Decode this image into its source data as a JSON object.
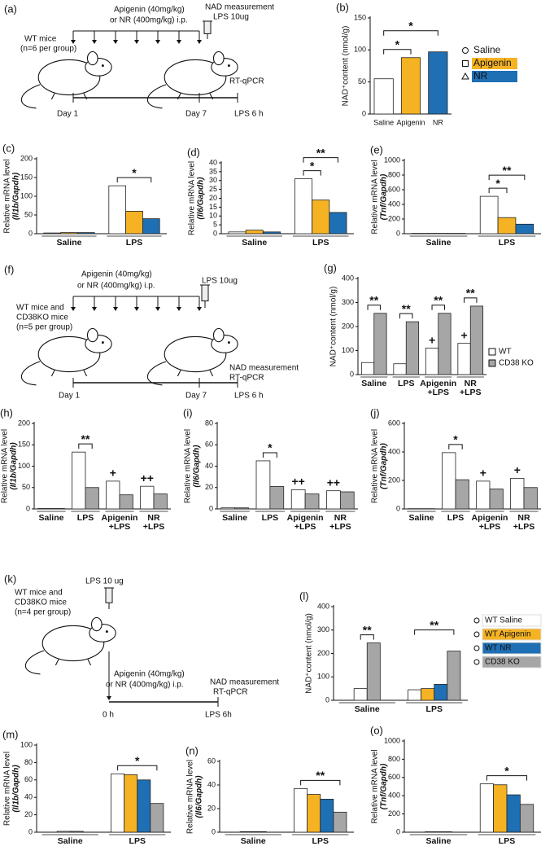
{
  "schematics": [
    {
      "panel": "(a)",
      "texts": [
        "Apigenin (40mg/kg)",
        "or NR (400mg/kg) i.p.",
        "NAD measurement",
        "LPS 10ug",
        "WT mice",
        "(n=6 per group)",
        "RT-qPCR",
        "Day 1",
        "Day 7",
        "LPS 6 h"
      ]
    },
    {
      "panel": "(f)",
      "texts": [
        "Apigenin (40mg/kg)",
        "or NR (400mg/kg) i.p.",
        "LPS 10ug",
        "WT mice and",
        "CD38KO mice",
        "(n=5 per group)",
        "NAD measurement",
        "RT-qPCR",
        "Day 1",
        "Day 7",
        "LPS 6 h"
      ]
    },
    {
      "panel": "(k)",
      "texts": [
        "WT mice and",
        "CD38KO mice",
        "(n=4 per group)",
        "LPS 10 ug",
        "Apigenin (40mg/kg)",
        "or NR (400mg/kg) i.p.",
        "NAD measurement",
        "RT-qPCR",
        "0 h",
        "LPS 6h"
      ]
    }
  ],
  "chart_data": [
    {
      "type": "bar",
      "panel": "(b)",
      "ylabel": "NAD⁺content (nmol/g)",
      "categories": [
        "Saline",
        "Apigenin",
        "NR"
      ],
      "values": [
        55,
        88,
        97
      ],
      "colors": [
        "#ffffff",
        "#f5b324",
        "#1f6fb4"
      ],
      "legend": [
        "Saline",
        "Apigenin",
        "NR"
      ],
      "ylim": [
        0,
        150
      ],
      "yticks": [
        0,
        50,
        100,
        150
      ],
      "annotations": [
        "*",
        "*"
      ]
    },
    {
      "type": "bar",
      "panel": "(c)",
      "ylabel": "Relative mRNA level",
      "ylabel2": "(Il1b/Gapdh)",
      "categories": [
        "Saline",
        "LPS"
      ],
      "series": [
        {
          "color": "#ffffff",
          "values": [
            2,
            128
          ]
        },
        {
          "color": "#f5b324",
          "values": [
            3,
            60
          ]
        },
        {
          "color": "#1f6fb4",
          "values": [
            3,
            40
          ]
        }
      ],
      "ylim": [
        0,
        200
      ],
      "yticks": [
        0,
        50,
        100,
        150,
        200
      ],
      "annotations": [
        "*"
      ]
    },
    {
      "type": "bar",
      "panel": "(d)",
      "ylabel": "Relative mRNA level",
      "ylabel2": "(Il6/Gapdh)",
      "categories": [
        "Saline",
        "LPS"
      ],
      "series": [
        {
          "color": "#ffffff",
          "values": [
            1,
            31
          ]
        },
        {
          "color": "#f5b324",
          "values": [
            2,
            19
          ]
        },
        {
          "color": "#1f6fb4",
          "values": [
            1,
            12
          ]
        }
      ],
      "ylim": [
        0,
        40
      ],
      "yticks": [
        0,
        5,
        10,
        15,
        20,
        25,
        30,
        35,
        40
      ],
      "annotations": [
        "*",
        "**"
      ]
    },
    {
      "type": "bar",
      "panel": "(e)",
      "ylabel": "Relative mRNA level",
      "ylabel2": "(Tnf/Gapdh)",
      "categories": [
        "Saline",
        "LPS"
      ],
      "series": [
        {
          "color": "#ffffff",
          "values": [
            5,
            510
          ]
        },
        {
          "color": "#f5b324",
          "values": [
            5,
            220
          ]
        },
        {
          "color": "#1f6fb4",
          "values": [
            5,
            130
          ]
        }
      ],
      "ylim": [
        0,
        1000
      ],
      "yticks": [
        0,
        200,
        400,
        600,
        800,
        1000
      ],
      "annotations": [
        "*",
        "**"
      ]
    },
    {
      "type": "bar",
      "panel": "(g)",
      "ylabel": "NAD⁺content (nmol/g)",
      "categories": [
        "Saline",
        "LPS",
        "Apigenin\n+LPS",
        "NR\n+LPS"
      ],
      "series": [
        {
          "name": "WT",
          "color": "#ffffff",
          "values": [
            50,
            45,
            110,
            130
          ]
        },
        {
          "name": "CD38 KO",
          "color": "#a6a6a6",
          "values": [
            255,
            220,
            255,
            285
          ]
        }
      ],
      "ylim": [
        0,
        400
      ],
      "yticks": [
        0,
        100,
        200,
        300,
        400
      ],
      "annotations": [
        "**",
        "**",
        "**",
        "**",
        "+",
        "+"
      ]
    },
    {
      "type": "bar",
      "panel": "(h)",
      "ylabel": "Relative mRNA level",
      "ylabel2": "(Il1b/Gapdh)",
      "categories": [
        "Saline",
        "LPS",
        "Apigenin\n+LPS",
        "NR\n+LPS"
      ],
      "series": [
        {
          "color": "#ffffff",
          "values": [
            1,
            133,
            65,
            53
          ]
        },
        {
          "color": "#a6a6a6",
          "values": [
            1,
            50,
            33,
            35
          ]
        }
      ],
      "ylim": [
        0,
        200
      ],
      "yticks": [
        0,
        50,
        100,
        150,
        200
      ],
      "annotations": [
        "**",
        "+",
        "++"
      ]
    },
    {
      "type": "bar",
      "panel": "(i)",
      "ylabel": "Relative mRNA level",
      "ylabel2": "(Il6/Gapdh)",
      "categories": [
        "Saline",
        "LPS",
        "Apigenin\n+LPS",
        "NR\n+LPS"
      ],
      "series": [
        {
          "color": "#ffffff",
          "values": [
            1,
            45,
            18,
            17
          ]
        },
        {
          "color": "#a6a6a6",
          "values": [
            1,
            21,
            14,
            16
          ]
        }
      ],
      "ylim": [
        0,
        80
      ],
      "yticks": [
        0,
        20,
        40,
        60,
        80
      ],
      "annotations": [
        "*",
        "++",
        "++"
      ]
    },
    {
      "type": "bar",
      "panel": "(j)",
      "ylabel": "Relative mRNA level",
      "ylabel2": "(Tnf/Gapdh)",
      "categories": [
        "Saline",
        "LPS",
        "Apigenin\n+LPS",
        "NR\n+LPS"
      ],
      "series": [
        {
          "color": "#ffffff",
          "values": [
            2,
            395,
            195,
            215
          ]
        },
        {
          "color": "#a6a6a6",
          "values": [
            2,
            205,
            140,
            150
          ]
        }
      ],
      "ylim": [
        0,
        600
      ],
      "yticks": [
        0,
        200,
        400,
        600
      ],
      "annotations": [
        "*",
        "+",
        "+"
      ]
    },
    {
      "type": "bar",
      "panel": "(l)",
      "ylabel": "NAD⁺content (nmol/g)",
      "categories": [
        "Saline",
        "LPS"
      ],
      "series": [
        {
          "name": "WT Saline",
          "color": "#ffffff",
          "values": [
            50,
            45
          ]
        },
        {
          "name": "WT Apigenin",
          "color": "#f5b324",
          "values": [
            null,
            50
          ]
        },
        {
          "name": "WT NR",
          "color": "#1f6fb4",
          "values": [
            null,
            68
          ]
        },
        {
          "name": "CD38 KO",
          "color": "#a6a6a6",
          "values": [
            245,
            210
          ]
        }
      ],
      "ylim": [
        0,
        400
      ],
      "yticks": [
        0,
        100,
        200,
        300,
        400
      ],
      "annotations": [
        "**",
        "**"
      ]
    },
    {
      "type": "bar",
      "panel": "(m)",
      "ylabel": "Relative mRNA level",
      "ylabel2": "(Il1b/Gapdh)",
      "categories": [
        "Saline",
        "LPS"
      ],
      "series": [
        {
          "color": "#ffffff",
          "values": [
            1,
            67
          ]
        },
        {
          "color": "#f5b324",
          "values": [
            null,
            66
          ]
        },
        {
          "color": "#1f6fb4",
          "values": [
            null,
            60
          ]
        },
        {
          "color": "#a6a6a6",
          "values": [
            1,
            33
          ]
        }
      ],
      "ylim": [
        0,
        100
      ],
      "yticks": [
        0,
        20,
        40,
        60,
        80,
        100
      ],
      "annotations": [
        "*"
      ]
    },
    {
      "type": "bar",
      "panel": "(n)",
      "ylabel": "Relative mRNA level",
      "ylabel2": "(Il6/Gapdh)",
      "categories": [
        "Saline",
        "LPS"
      ],
      "series": [
        {
          "color": "#ffffff",
          "values": [
            0.5,
            37
          ]
        },
        {
          "color": "#f5b324",
          "values": [
            null,
            32
          ]
        },
        {
          "color": "#1f6fb4",
          "values": [
            null,
            28
          ]
        },
        {
          "color": "#a6a6a6",
          "values": [
            0.5,
            17
          ]
        }
      ],
      "ylim": [
        0,
        60
      ],
      "yticks": [
        0,
        20,
        40,
        60
      ],
      "annotations": [
        "**"
      ]
    },
    {
      "type": "bar",
      "panel": "(o)",
      "ylabel": "Relative mRNA level",
      "ylabel2": "(Tnf/Gapdh)",
      "categories": [
        "Saline",
        "LPS"
      ],
      "series": [
        {
          "color": "#ffffff",
          "values": [
            5,
            530
          ]
        },
        {
          "color": "#f5b324",
          "values": [
            null,
            520
          ]
        },
        {
          "color": "#1f6fb4",
          "values": [
            null,
            410
          ]
        },
        {
          "color": "#a6a6a6",
          "values": [
            5,
            305
          ]
        }
      ],
      "ylim": [
        0,
        1000
      ],
      "yticks": [
        0,
        200,
        400,
        600,
        800,
        1000
      ],
      "annotations": [
        "*"
      ]
    }
  ]
}
